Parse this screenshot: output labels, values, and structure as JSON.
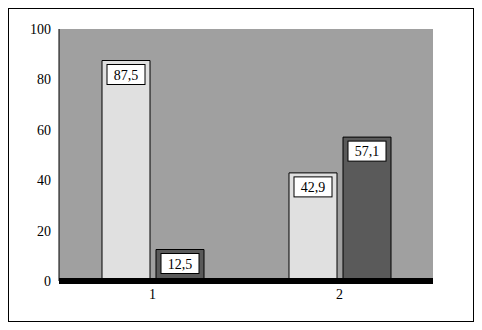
{
  "chart_data": {
    "type": "bar",
    "categories": [
      "1",
      "2"
    ],
    "series": [
      {
        "color": "#e0e0e0",
        "values": [
          87.5,
          42.9
        ],
        "value_labels": [
          "87,5",
          "42,9"
        ]
      },
      {
        "color": "#5a5a5a",
        "values": [
          12.5,
          57.1
        ],
        "value_labels": [
          "12,5",
          "57,1"
        ]
      }
    ],
    "ylim": [
      0,
      100
    ],
    "yticks": [
      0,
      20,
      40,
      60,
      80,
      100
    ],
    "grid": false,
    "data_labels": true
  }
}
